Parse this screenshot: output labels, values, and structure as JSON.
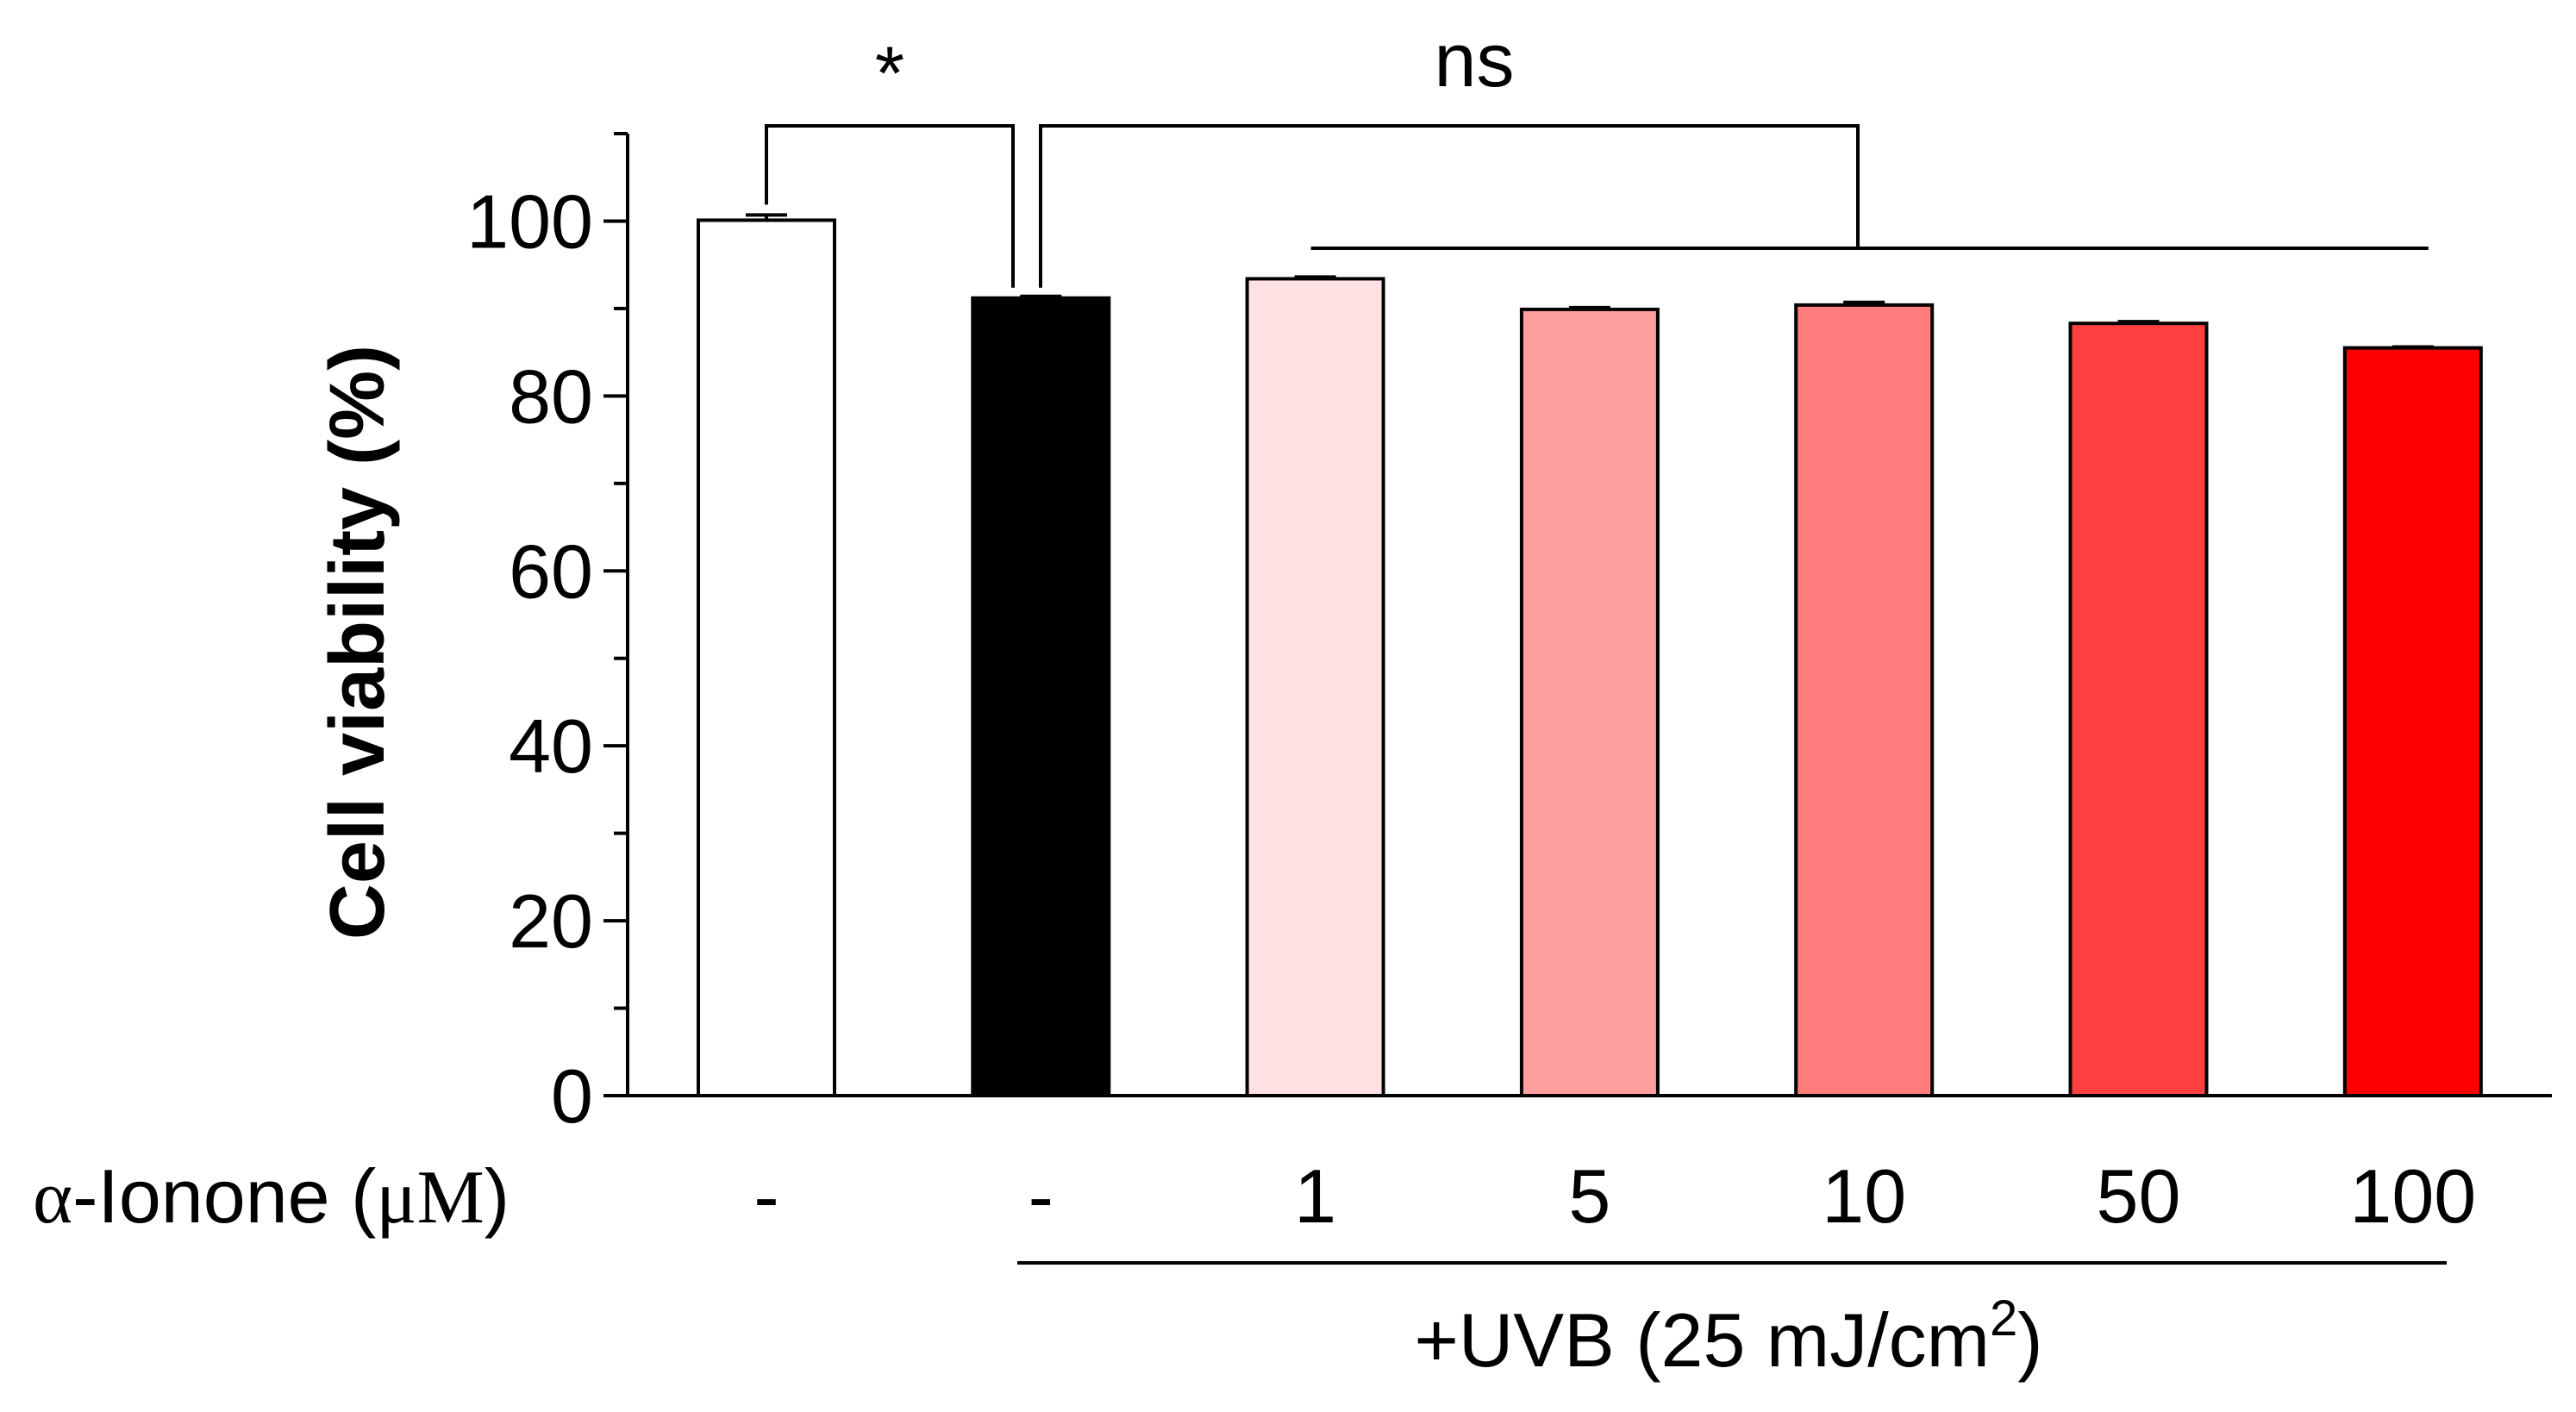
{
  "chart_data": {
    "type": "bar",
    "title": "",
    "xlabel": "",
    "ylabel": "Cell viability (%)",
    "ylim": [
      0,
      110
    ],
    "yticks": [
      0,
      20,
      40,
      60,
      80,
      100
    ],
    "row_label_greek": "α",
    "row_label_name": "-Ionone (",
    "row_label_unit": "μM",
    "row_label_close": ")",
    "categories": [
      "-",
      "-",
      "1",
      "5",
      "10",
      "50",
      "100"
    ],
    "values": [
      100.1,
      91.2,
      93.4,
      89.9,
      90.4,
      88.3,
      85.5
    ],
    "errors": [
      0.6,
      0.2,
      0.2,
      0.2,
      0.3,
      0.2,
      0.1
    ],
    "colors": [
      "#ffffff",
      "#000000",
      "#ffe0e3",
      "#ff9e9f",
      "#ff7b7c",
      "#ff4040",
      "#ff0000"
    ],
    "uvb_label_main": "+UVB (25 mJ/cm",
    "uvb_label_sup": "2",
    "uvb_label_close": ")",
    "sig_star": "*",
    "sig_ns": "ns"
  }
}
